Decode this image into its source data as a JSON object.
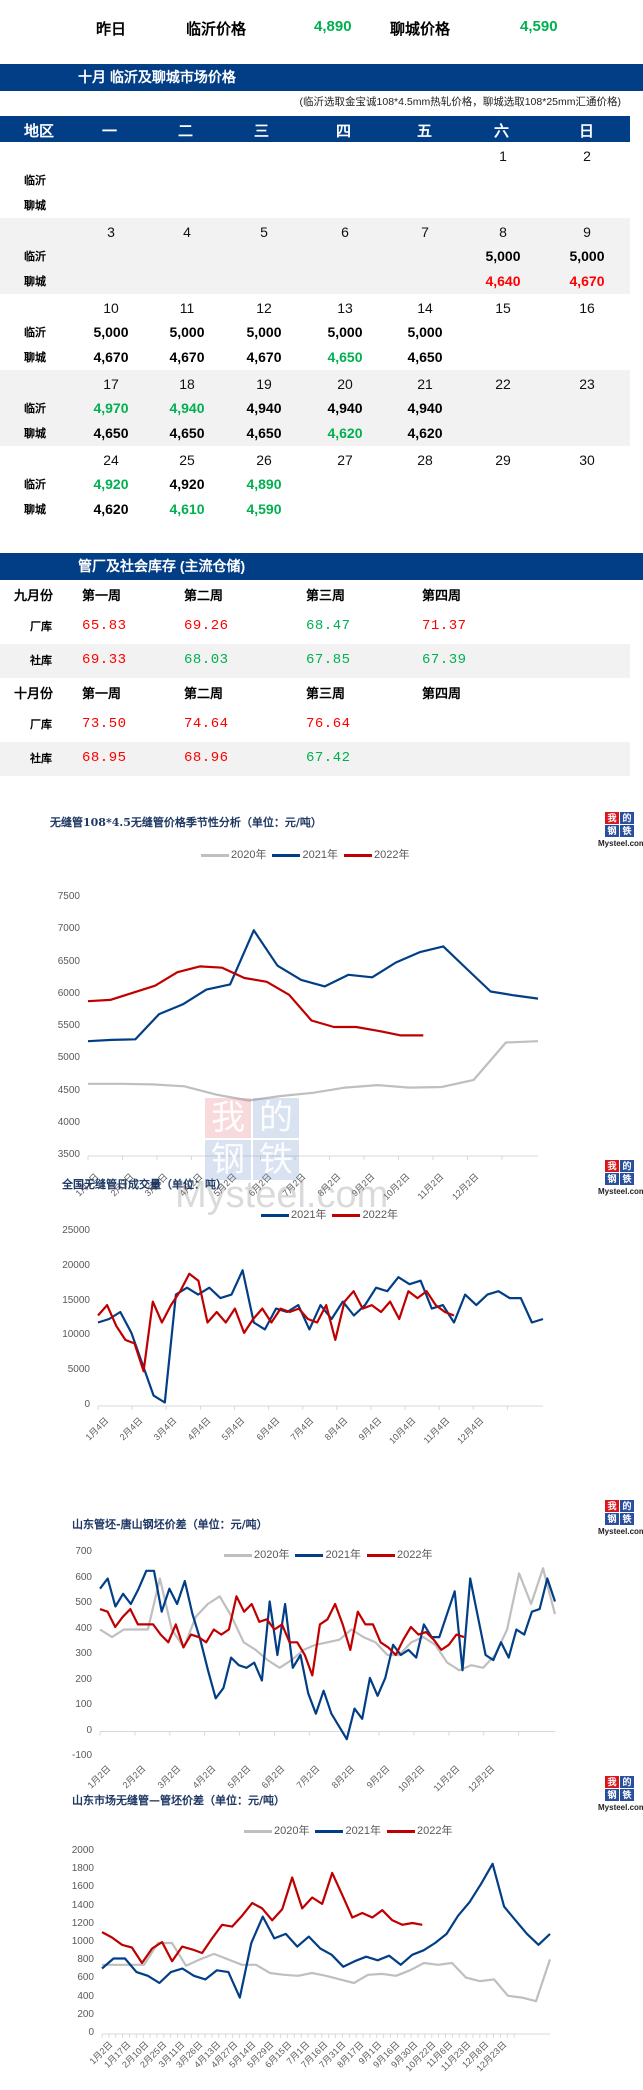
{
  "summary": {
    "label": "昨日",
    "linyi_label": "临沂价格",
    "linyi_value": "4,890",
    "liaocheng_label": "聊城价格",
    "liaocheng_value": "4,590"
  },
  "calendar": {
    "title": "十月  临沂及聊城市场价格",
    "note": "(临沂选取金宝诚108*4.5mm热轧价格，聊城选取108*25mm汇通价格)",
    "header": [
      "地区",
      "一",
      "二",
      "三",
      "四",
      "五",
      "六",
      "日"
    ],
    "row_labels": {
      "linyi": "临沂",
      "liaocheng": "聊城"
    },
    "weeks": [
      {
        "days": [
          "",
          "",
          "",
          "",
          "",
          "1",
          "2"
        ],
        "linyi": [
          "",
          "",
          "",
          "",
          "",
          "",
          ""
        ],
        "liaocheng": [
          "",
          "",
          "",
          "",
          "",
          "",
          ""
        ]
      },
      {
        "days": [
          "3",
          "4",
          "5",
          "6",
          "7",
          "8",
          "9"
        ],
        "linyi": [
          "",
          "",
          "",
          "",
          "",
          "5,000",
          "5,000"
        ],
        "liaocheng": [
          "",
          "",
          "",
          "",
          "",
          "4,640",
          "4,670"
        ]
      },
      {
        "days": [
          "10",
          "11",
          "12",
          "13",
          "14",
          "15",
          "16"
        ],
        "linyi": [
          "5,000",
          "5,000",
          "5,000",
          "5,000",
          "5,000",
          "",
          ""
        ],
        "liaocheng": [
          "4,670",
          "4,670",
          "4,670",
          "4,650",
          "4,650",
          "",
          ""
        ]
      },
      {
        "days": [
          "17",
          "18",
          "19",
          "20",
          "21",
          "22",
          "23"
        ],
        "linyi": [
          "4,970",
          "4,940",
          "4,940",
          "4,940",
          "4,940",
          "",
          ""
        ],
        "liaocheng": [
          "4,650",
          "4,650",
          "4,650",
          "4,620",
          "4,620",
          "",
          ""
        ]
      },
      {
        "days": [
          "24",
          "25",
          "26",
          "27",
          "28",
          "29",
          "30"
        ],
        "linyi": [
          "4,920",
          "4,920",
          "4,890",
          "",
          "",
          "",
          ""
        ],
        "liaocheng": [
          "4,620",
          "4,610",
          "4,590",
          "",
          "",
          "",
          ""
        ]
      }
    ],
    "colors": {
      "up": "#ff0000",
      "down": "#00b050",
      "flat": "#000000"
    }
  },
  "inventory": {
    "title": "管厂及社会库存 (主流仓储)",
    "months": [
      {
        "label": "九月份",
        "weeks": [
          "第一周",
          "第二周",
          "第三周",
          "第四周"
        ],
        "rows": [
          {
            "label": "厂库",
            "values": [
              "65.83",
              "69.26",
              "68.47",
              "71.37"
            ],
            "trend": [
              "up",
              "up",
              "down",
              "up"
            ]
          },
          {
            "label": "社库",
            "values": [
              "69.33",
              "68.03",
              "67.85",
              "67.39"
            ],
            "trend": [
              "up",
              "down",
              "down",
              "down"
            ]
          }
        ]
      },
      {
        "label": "十月份",
        "weeks": [
          "第一周",
          "第二周",
          "第三周",
          "第四周"
        ],
        "rows": [
          {
            "label": "厂库",
            "values": [
              "73.50",
              "74.64",
              "76.64",
              ""
            ],
            "trend": [
              "up",
              "up",
              "up",
              ""
            ]
          },
          {
            "label": "社库",
            "values": [
              "68.95",
              "68.96",
              "67.42",
              ""
            ],
            "trend": [
              "up",
              "up",
              "down",
              ""
            ]
          }
        ]
      }
    ]
  },
  "watermark": {
    "cn": [
      "我",
      "的",
      "钢",
      "铁"
    ],
    "en": "Mysteel.com"
  },
  "logo_text": "Mysteel.com",
  "chart_data": [
    {
      "type": "line",
      "title": "无缝管108*4.5无缝管价格季节性分析（单位：元/吨）",
      "xlabel": "",
      "ylabel": "",
      "ylim": [
        3500,
        7500
      ],
      "yticks": [
        "7500",
        "7000",
        "6500",
        "6000",
        "5500",
        "5000",
        "4500",
        "4000",
        "3500"
      ],
      "categories": [
        "1月2日",
        "2月2日",
        "3月2日",
        "4月2日",
        "5月2日",
        "6月2日",
        "7月2日",
        "8月2日",
        "9月2日",
        "10月2日",
        "11月2日",
        "12月2日"
      ],
      "legend_position": "top",
      "grid": false,
      "series": [
        {
          "name": "2020年",
          "color": "#bfbfbf",
          "values": [
            4620,
            4620,
            4610,
            4580,
            4450,
            4360,
            4430,
            4480,
            4560,
            4600,
            4560,
            4570,
            4680,
            5260,
            5280
          ]
        },
        {
          "name": "2021年",
          "color": "#023e86",
          "values": [
            5280,
            5300,
            5310,
            5700,
            5850,
            6080,
            6160,
            7000,
            6450,
            6230,
            6130,
            6310,
            6270,
            6500,
            6660,
            6750,
            6400,
            6050,
            5990,
            5940
          ]
        },
        {
          "name": "2022年",
          "color": "#c00000",
          "values": [
            5900,
            5920,
            6030,
            6140,
            6350,
            6440,
            6420,
            6260,
            6200,
            6000,
            5600,
            5500,
            5500,
            5440,
            5370,
            5370
          ]
        }
      ]
    },
    {
      "type": "line",
      "title": "全国无缝管日成交量（单位：吨）",
      "xlabel": "",
      "ylabel": "",
      "ylim": [
        0,
        25000
      ],
      "yticks": [
        "25000",
        "20000",
        "15000",
        "10000",
        "5000",
        "0"
      ],
      "categories": [
        "1月4日",
        "2月4日",
        "3月4日",
        "4月4日",
        "5月4日",
        "6月4日",
        "7月4日",
        "8月4日",
        "9月4日",
        "10月4日",
        "11月4日",
        "12月4日"
      ],
      "legend_position": "top",
      "grid": false,
      "series": [
        {
          "name": "2021年",
          "color": "#023e86",
          "values": [
            12000,
            12500,
            13500,
            10500,
            6000,
            1500,
            500,
            16000,
            17000,
            16000,
            17000,
            15500,
            16000,
            19500,
            12000,
            11000,
            14000,
            13500,
            14500,
            11000,
            14500,
            12500,
            15000,
            13000,
            14500,
            17000,
            16500,
            18500,
            17500,
            18000,
            14000,
            14500,
            12000,
            16000,
            14500,
            16000,
            16500,
            15500,
            15500,
            12000,
            12500
          ]
        },
        {
          "name": "2022年",
          "color": "#c00000",
          "values": [
            13000,
            14500,
            11500,
            9500,
            9000,
            5000,
            15000,
            12000,
            14500,
            16500,
            19000,
            18000,
            12000,
            13500,
            12000,
            14000,
            10500,
            12500,
            14000,
            12000,
            14000,
            13500,
            14000,
            12500,
            12000,
            14500,
            9500,
            15000,
            16500,
            14000,
            14500,
            13500,
            15000,
            12500,
            16500,
            15500,
            16500,
            14500,
            13500,
            13000
          ]
        }
      ]
    },
    {
      "type": "line",
      "title": "山东管坯-唐山钢坯价差（单位：元/吨）",
      "xlabel": "",
      "ylabel": "",
      "ylim": [
        -100,
        700
      ],
      "yticks": [
        "700",
        "600",
        "500",
        "400",
        "300",
        "200",
        "100",
        "0",
        "-100"
      ],
      "categories": [
        "1月2日",
        "2月2日",
        "3月2日",
        "4月2日",
        "5月2日",
        "6月2日",
        "7月2日",
        "8月2日",
        "9月2日",
        "10月2日",
        "11月2日",
        "12月2日"
      ],
      "legend_position": "top",
      "grid": false,
      "series": [
        {
          "name": "2020年",
          "color": "#bfbfbf",
          "values": [
            400,
            370,
            400,
            400,
            400,
            600,
            400,
            330,
            450,
            500,
            530,
            450,
            350,
            320,
            280,
            250,
            280,
            320,
            340,
            350,
            360,
            400,
            370,
            350,
            300,
            300,
            350,
            370,
            340,
            270,
            240,
            260,
            250,
            300,
            400,
            620,
            500,
            640,
            460
          ]
        },
        {
          "name": "2021年",
          "color": "#023e86",
          "values": [
            560,
            600,
            490,
            540,
            500,
            560,
            630,
            630,
            470,
            560,
            500,
            590,
            460,
            360,
            240,
            130,
            170,
            290,
            260,
            250,
            270,
            200,
            510,
            300,
            500,
            250,
            300,
            150,
            70,
            160,
            70,
            20,
            -30,
            90,
            50,
            210,
            140,
            210,
            340,
            300,
            320,
            290,
            420,
            370,
            370,
            460,
            550,
            240,
            600,
            450,
            300,
            280,
            350,
            290,
            400,
            380,
            470,
            480,
            600,
            510
          ]
        },
        {
          "name": "2022年",
          "color": "#c00000",
          "values": [
            480,
            470,
            410,
            450,
            480,
            420,
            420,
            420,
            380,
            350,
            420,
            330,
            380,
            370,
            350,
            400,
            380,
            400,
            530,
            470,
            500,
            430,
            440,
            400,
            420,
            350,
            350,
            300,
            220,
            420,
            440,
            500,
            420,
            320,
            470,
            420,
            420,
            350,
            330,
            300,
            360,
            410,
            380,
            390,
            360,
            320,
            340,
            380,
            370
          ]
        }
      ]
    },
    {
      "type": "line",
      "title": "山东市场无缝管—管坯价差（单位：元/吨）",
      "xlabel": "",
      "ylabel": "",
      "ylim": [
        0,
        2000
      ],
      "yticks": [
        "2000",
        "1800",
        "1600",
        "1400",
        "1200",
        "1000",
        "800",
        "600",
        "400",
        "200",
        "0"
      ],
      "categories": [
        "1月2日",
        "1月17日",
        "2月10日",
        "2月25日",
        "3月11日",
        "3月26日",
        "4月13日",
        "4月27日",
        "5月14日",
        "5月29日",
        "6月15日",
        "7月1日",
        "7月16日",
        "7月31日",
        "8月17日",
        "9月1日",
        "9月16日",
        "9月30日",
        "10月22日",
        "11月6日",
        "11月23日",
        "12月8日",
        "12月23日"
      ],
      "legend_position": "top",
      "grid": false,
      "series": [
        {
          "name": "2020年",
          "color": "#bfbfbf",
          "values": [
            760,
            760,
            760,
            760,
            1000,
            1000,
            750,
            820,
            880,
            820,
            760,
            760,
            670,
            650,
            640,
            670,
            640,
            600,
            560,
            650,
            660,
            640,
            700,
            780,
            760,
            780,
            620,
            580,
            600,
            420,
            400,
            360,
            820
          ]
        },
        {
          "name": "2021年",
          "color": "#023e86",
          "values": [
            720,
            830,
            830,
            680,
            640,
            560,
            680,
            720,
            640,
            600,
            700,
            680,
            400,
            1000,
            1290,
            1050,
            1100,
            960,
            1070,
            940,
            870,
            740,
            800,
            850,
            810,
            860,
            760,
            870,
            920,
            1000,
            1100,
            1300,
            1450,
            1650,
            1870,
            1400,
            1250,
            1100,
            980,
            1100
          ]
        },
        {
          "name": "2022年",
          "color": "#c00000",
          "values": [
            1120,
            1060,
            980,
            950,
            780,
            940,
            1010,
            800,
            960,
            930,
            890,
            1050,
            1200,
            1180,
            1300,
            1440,
            1380,
            1250,
            1370,
            1720,
            1380,
            1500,
            1430,
            1770,
            1530,
            1280,
            1330,
            1280,
            1360,
            1250,
            1200,
            1220,
            1200
          ]
        }
      ]
    }
  ]
}
